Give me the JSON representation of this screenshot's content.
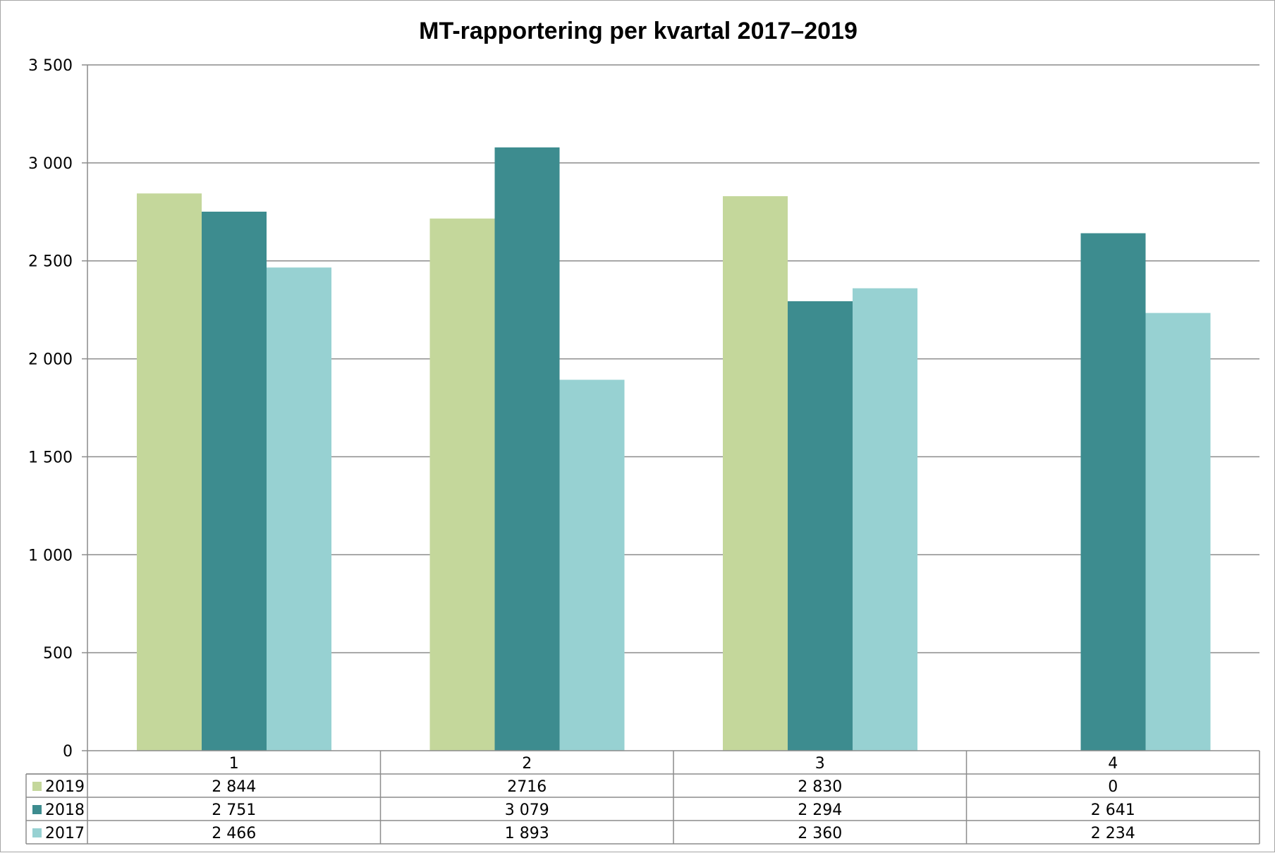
{
  "chart_data": {
    "type": "bar",
    "title": "MT-rapportering per kvartal 2017–2019",
    "xlabel": "",
    "ylabel": "",
    "categories": [
      "1",
      "2",
      "3",
      "4"
    ],
    "series": [
      {
        "name": "2019",
        "color": "#c4d79b",
        "values": [
          2844,
          2716,
          2830,
          0
        ],
        "labels": [
          "2 844",
          "2716",
          "2 830",
          "0"
        ]
      },
      {
        "name": "2018",
        "color": "#3d8c8f",
        "values": [
          2751,
          3079,
          2294,
          2641
        ],
        "labels": [
          "2 751",
          "3 079",
          "2 294",
          "2 641"
        ]
      },
      {
        "name": "2017",
        "color": "#97d1d2",
        "values": [
          2466,
          1893,
          2360,
          2234
        ],
        "labels": [
          "2 466",
          "1 893",
          "2 360",
          "2 234"
        ]
      }
    ],
    "ylim": [
      0,
      3500
    ],
    "yticks": [
      0,
      500,
      1000,
      1500,
      2000,
      2500,
      3000,
      3500
    ],
    "ytick_labels": [
      "0",
      "500",
      "1 000",
      "1 500",
      "2 000",
      "2 500",
      "3 000",
      "3 500"
    ],
    "grid": true,
    "legend": "data-table-left"
  }
}
